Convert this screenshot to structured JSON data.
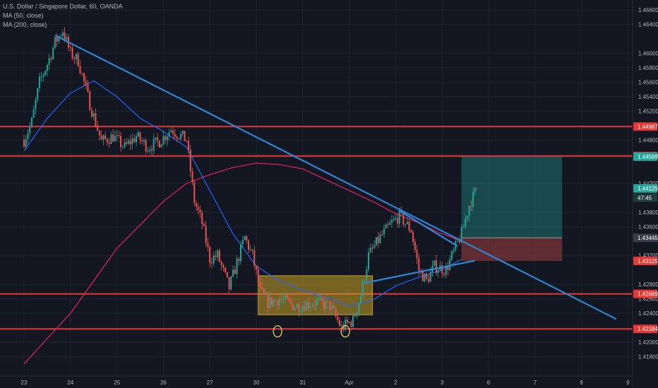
{
  "legend": {
    "title": "U.S. Dollar / Singapore Dollar, 60, OANDA",
    "ma50": "MA (50, close)",
    "ma200": "MA (200, close)"
  },
  "colors": {
    "background": "#131722",
    "grid": "#1f2430",
    "axis_text": "#b2b5be",
    "up_candle": "#26a69a",
    "down_candle": "#ef5350",
    "ma50": "#2962ff",
    "ma200": "#e91e63",
    "level_line": "#e53935",
    "trendline": "#2f86d6",
    "range_box": "#c9a227",
    "target_zone": "#26a69a",
    "stop_zone": "#ef5350",
    "circle": "#f5e663"
  },
  "chart_data": {
    "type": "candlestick",
    "instrument": "U.S. Dollar / Singapore Dollar",
    "timeframe": "60",
    "source": "OANDA",
    "ylim": [
      1.416,
      1.467
    ],
    "x_ticks": [
      {
        "i": 0,
        "label": "23"
      },
      {
        "i": 24,
        "label": "24"
      },
      {
        "i": 48,
        "label": "25"
      },
      {
        "i": 72,
        "label": "26"
      },
      {
        "i": 96,
        "label": "27"
      },
      {
        "i": 120,
        "label": "30"
      },
      {
        "i": 144,
        "label": "31"
      },
      {
        "i": 168,
        "label": "Apr"
      },
      {
        "i": 192,
        "label": "2"
      },
      {
        "i": 216,
        "label": "3"
      },
      {
        "i": 240,
        "label": "6"
      },
      {
        "i": 264,
        "label": "7"
      },
      {
        "i": 288,
        "label": "8"
      },
      {
        "i": 312,
        "label": "9"
      }
    ],
    "y_ticks": [
      "1.46600",
      "1.46400",
      "1.46000",
      "1.45800",
      "1.45600",
      "1.45400",
      "1.45200",
      "1.44800",
      "1.44600",
      "1.44200",
      "1.43800",
      "1.43600",
      "1.43200",
      "1.42800",
      "1.42600",
      "1.42400",
      "1.42000",
      "1.41800"
    ],
    "price_tags": [
      {
        "label": "1.44987",
        "value": 1.44987,
        "color": "#e53935"
      },
      {
        "label": "1.44578",
        "value": 1.44578,
        "color": "#e53935"
      },
      {
        "label": "1.44569",
        "value": 1.44569,
        "color": "#26a69a"
      },
      {
        "label": "1.44129",
        "value": 1.44129,
        "color": "#26a69a"
      },
      {
        "label": "47:45",
        "value": 1.44,
        "color": "#1e3d3a"
      },
      {
        "label": "1.43445",
        "value": 1.43445,
        "color": "#3a3e4a"
      },
      {
        "label": "1.43125",
        "value": 1.43125,
        "color": "#e53935"
      },
      {
        "label": "1.42669",
        "value": 1.42669,
        "color": "#e53935"
      },
      {
        "label": "1.42184",
        "value": 1.42184,
        "color": "#e53935"
      }
    ],
    "horizontal_levels": [
      1.44987,
      1.44578,
      1.42669,
      1.42184
    ],
    "anchors": [
      {
        "i": 0,
        "p": 1.448
      },
      {
        "i": 4,
        "p": 1.4505
      },
      {
        "i": 8,
        "p": 1.456
      },
      {
        "i": 12,
        "p": 1.4585
      },
      {
        "i": 16,
        "p": 1.4615
      },
      {
        "i": 20,
        "p": 1.4632
      },
      {
        "i": 24,
        "p": 1.46
      },
      {
        "i": 28,
        "p": 1.459
      },
      {
        "i": 34,
        "p": 1.453
      },
      {
        "i": 40,
        "p": 1.4478
      },
      {
        "i": 46,
        "p": 1.4485
      },
      {
        "i": 52,
        "p": 1.447
      },
      {
        "i": 58,
        "p": 1.4485
      },
      {
        "i": 64,
        "p": 1.447
      },
      {
        "i": 70,
        "p": 1.4478
      },
      {
        "i": 76,
        "p": 1.4495
      },
      {
        "i": 84,
        "p": 1.448
      },
      {
        "i": 88,
        "p": 1.4395
      },
      {
        "i": 92,
        "p": 1.4365
      },
      {
        "i": 96,
        "p": 1.4315
      },
      {
        "i": 100,
        "p": 1.432
      },
      {
        "i": 106,
        "p": 1.4275
      },
      {
        "i": 110,
        "p": 1.431
      },
      {
        "i": 114,
        "p": 1.4345
      },
      {
        "i": 118,
        "p": 1.432
      },
      {
        "i": 122,
        "p": 1.427
      },
      {
        "i": 126,
        "p": 1.4255
      },
      {
        "i": 132,
        "p": 1.426
      },
      {
        "i": 140,
        "p": 1.425
      },
      {
        "i": 150,
        "p": 1.4255
      },
      {
        "i": 158,
        "p": 1.425
      },
      {
        "i": 164,
        "p": 1.422
      },
      {
        "i": 170,
        "p": 1.423
      },
      {
        "i": 174,
        "p": 1.4265
      },
      {
        "i": 178,
        "p": 1.432
      },
      {
        "i": 184,
        "p": 1.4345
      },
      {
        "i": 190,
        "p": 1.4365
      },
      {
        "i": 194,
        "p": 1.4375
      },
      {
        "i": 200,
        "p": 1.4355
      },
      {
        "i": 204,
        "p": 1.43
      },
      {
        "i": 208,
        "p": 1.4285
      },
      {
        "i": 212,
        "p": 1.4305
      },
      {
        "i": 218,
        "p": 1.43
      },
      {
        "i": 222,
        "p": 1.4325
      },
      {
        "i": 226,
        "p": 1.435
      },
      {
        "i": 230,
        "p": 1.439
      },
      {
        "i": 234,
        "p": 1.4413
      }
    ],
    "ma50": [
      {
        "i": 0,
        "p": 1.4465
      },
      {
        "i": 12,
        "p": 1.451
      },
      {
        "i": 24,
        "p": 1.4545
      },
      {
        "i": 36,
        "p": 1.4562
      },
      {
        "i": 48,
        "p": 1.454
      },
      {
        "i": 60,
        "p": 1.451
      },
      {
        "i": 72,
        "p": 1.4492
      },
      {
        "i": 84,
        "p": 1.447
      },
      {
        "i": 96,
        "p": 1.441
      },
      {
        "i": 108,
        "p": 1.435
      },
      {
        "i": 120,
        "p": 1.4305
      },
      {
        "i": 132,
        "p": 1.4285
      },
      {
        "i": 144,
        "p": 1.4272
      },
      {
        "i": 156,
        "p": 1.4262
      },
      {
        "i": 168,
        "p": 1.425
      },
      {
        "i": 180,
        "p": 1.4258
      },
      {
        "i": 192,
        "p": 1.4278
      },
      {
        "i": 204,
        "p": 1.429
      },
      {
        "i": 216,
        "p": 1.43
      },
      {
        "i": 226,
        "p": 1.4315
      }
    ],
    "ma200": [
      {
        "i": 0,
        "p": 1.417
      },
      {
        "i": 24,
        "p": 1.424
      },
      {
        "i": 48,
        "p": 1.433
      },
      {
        "i": 72,
        "p": 1.4395
      },
      {
        "i": 84,
        "p": 1.442
      },
      {
        "i": 96,
        "p": 1.4432
      },
      {
        "i": 108,
        "p": 1.4442
      },
      {
        "i": 120,
        "p": 1.4448
      },
      {
        "i": 132,
        "p": 1.4446
      },
      {
        "i": 144,
        "p": 1.444
      },
      {
        "i": 156,
        "p": 1.4425
      },
      {
        "i": 168,
        "p": 1.441
      },
      {
        "i": 180,
        "p": 1.4395
      },
      {
        "i": 192,
        "p": 1.4378
      },
      {
        "i": 204,
        "p": 1.4365
      },
      {
        "i": 216,
        "p": 1.435
      },
      {
        "i": 226,
        "p": 1.434
      }
    ],
    "trendlines": [
      {
        "name": "main-downtrend",
        "from": {
          "i": 16,
          "p": 1.4625
        },
        "to": {
          "i": 306,
          "p": 1.4232
        }
      },
      {
        "name": "wedge-upper",
        "from": {
          "i": 194,
          "p": 1.4382
        },
        "to": {
          "i": 224,
          "p": 1.4333
        }
      },
      {
        "name": "wedge-lower",
        "from": {
          "i": 176,
          "p": 1.4282
        },
        "to": {
          "i": 233,
          "p": 1.4313
        }
      }
    ],
    "range_box": {
      "from_i": 121,
      "to_i": 180,
      "top": 1.4292,
      "bottom": 1.4238
    },
    "circles": [
      {
        "i": 131,
        "p": 1.4215
      },
      {
        "i": 166,
        "p": 1.4215
      }
    ],
    "position": {
      "from_i": 226,
      "to_i": 278,
      "entry": 1.43445,
      "target": 1.44569,
      "stop": 1.43125
    }
  }
}
